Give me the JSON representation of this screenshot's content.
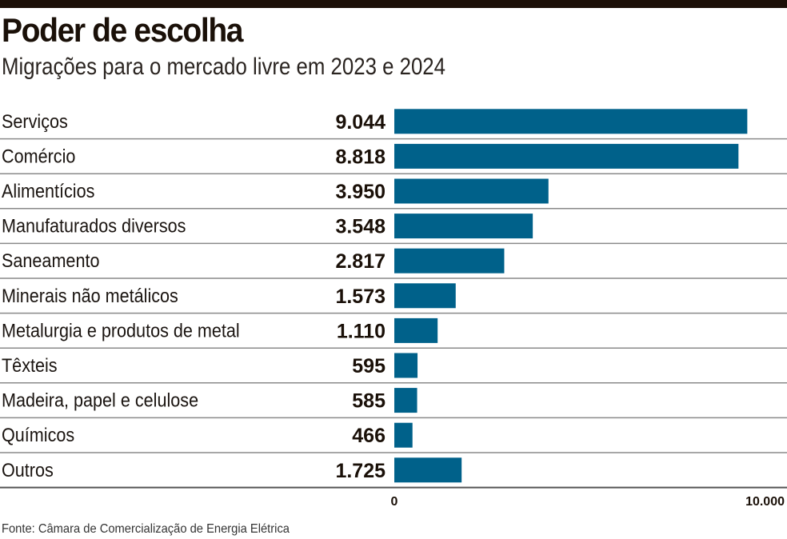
{
  "chart_data": {
    "type": "bar",
    "orientation": "horizontal",
    "title": "Poder de escolha",
    "subtitle": "Migrações para o mercado livre em 2023 e 2024",
    "categories": [
      "Serviços",
      "Comércio",
      "Alimentícios",
      "Manufaturados diversos",
      "Saneamento",
      "Minerais não metálicos",
      "Metalurgia e produtos de metal",
      "Têxteis",
      "Madeira, papel e celulose",
      "Químicos",
      "Outros"
    ],
    "values": [
      9044,
      8818,
      3950,
      3548,
      2817,
      1573,
      1110,
      595,
      585,
      466,
      1725
    ],
    "value_labels": [
      "9.044",
      "8.818",
      "3.950",
      "3.548",
      "2.817",
      "1.573",
      "1.110",
      "595",
      "585",
      "466",
      "1.725"
    ],
    "xlim": [
      0,
      10000
    ],
    "x_tick_labels": [
      "0",
      "10.000"
    ],
    "x_ticks": [
      0,
      10000
    ],
    "xlabel": "",
    "ylabel": "",
    "grid": false,
    "bar_color": "#00618a",
    "source": "Fonte: Câmara de Comercialização de Energia Elétrica"
  }
}
